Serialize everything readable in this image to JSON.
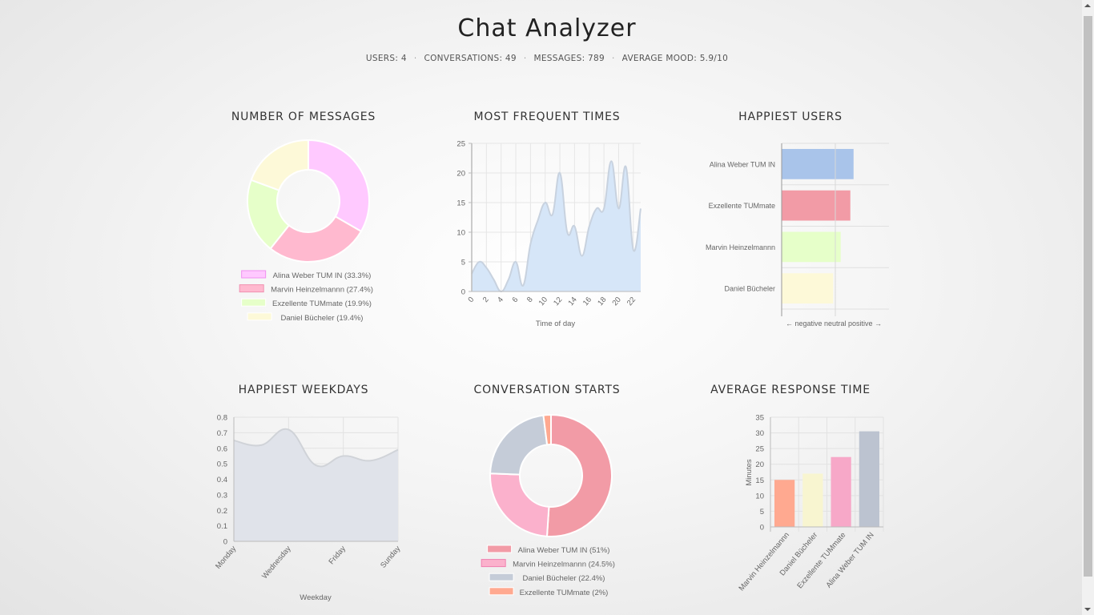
{
  "header": {
    "title": "Chat Analyzer",
    "stats": [
      "USERS: 4",
      "CONVERSATIONS: 49",
      "MESSAGES: 789",
      "AVERAGE MOOD: 5.9/10"
    ],
    "separator": "·"
  },
  "panels": {
    "messages_title": "NUMBER OF MESSAGES",
    "times_title": "MOST FREQUENT TIMES",
    "happiest_users_title": "HAPPIEST USERS",
    "weekdays_title": "HAPPIEST WEEKDAYS",
    "starts_title": "CONVERSATION STARTS",
    "response_title": "AVERAGE RESPONSE TIME"
  },
  "chart_data": [
    {
      "id": "messages",
      "type": "pie",
      "donut": true,
      "title": "NUMBER OF MESSAGES",
      "labels": [
        "Alina Weber TUM IN",
        "Marvin Heinzelmannn",
        "Exzellente TUMmate",
        "Daniel Bücheler"
      ],
      "values": [
        33.3,
        27.4,
        19.9,
        19.4
      ],
      "legend_labels": [
        "Alina Weber TUM IN (33.3%)",
        "Marvin Heinzelmannn (27.4%)",
        "Exzellente TUMmate (19.9%)",
        "Daniel Bücheler (19.4%)"
      ],
      "colors": [
        "#ffc9ff",
        "#ffb9cf",
        "#e6ffc9",
        "#fdf9d8"
      ],
      "borders": [
        "#f090f0",
        "#f090b0",
        "#ffffff",
        "#ffffff"
      ],
      "legend_position": "bottom"
    },
    {
      "id": "times",
      "type": "area",
      "title": "MOST FREQUENT TIMES",
      "xlabel": "Time of day",
      "ylabel": "",
      "x": [
        0,
        1,
        2,
        3,
        4,
        5,
        6,
        7,
        8,
        9,
        10,
        11,
        12,
        13,
        14,
        15,
        16,
        17,
        18,
        19,
        20,
        21,
        22,
        23
      ],
      "values": [
        3,
        5,
        4,
        2,
        0,
        2,
        5,
        1,
        8,
        12,
        15,
        13,
        20,
        10,
        11,
        6,
        11,
        14,
        14,
        22,
        14,
        21,
        7,
        14
      ],
      "xticks": [
        "0",
        "2",
        "4",
        "6",
        "8",
        "10",
        "12",
        "14",
        "16",
        "18",
        "20",
        "22"
      ],
      "yticks": [
        "0",
        "5",
        "10",
        "15",
        "20",
        "25"
      ],
      "ylim": [
        0,
        25
      ],
      "grid": true,
      "color": "#d6e6f8"
    },
    {
      "id": "happiest_users",
      "type": "bar",
      "orientation": "horizontal",
      "title": "HAPPIEST USERS",
      "categories": [
        "Alina Weber TUM IN",
        "Exzellente TUMmate",
        "Marvin Heinzelmannn",
        "Daniel Bücheler"
      ],
      "values": [
        0.67,
        0.64,
        0.55,
        0.48
      ],
      "xlim": [
        0,
        1
      ],
      "x_axis_caption": "← negative   neutral   positive →",
      "colors": [
        "#a9c4ea",
        "#f29ba6",
        "#e6ffc9",
        "#fdf9d8"
      ],
      "grid": true
    },
    {
      "id": "weekdays",
      "type": "area",
      "title": "HAPPIEST WEEKDAYS",
      "xlabel": "Weekday",
      "categories": [
        "Monday",
        "Tuesday",
        "Wednesday",
        "Thursday",
        "Friday",
        "Saturday",
        "Sunday"
      ],
      "values": [
        0.65,
        0.62,
        0.72,
        0.49,
        0.55,
        0.52,
        0.59
      ],
      "xticks": [
        "Monday",
        "Wednesday",
        "Friday",
        "Sunday"
      ],
      "yticks": [
        "0",
        "0.1",
        "0.2",
        "0.3",
        "0.4",
        "0.5",
        "0.6",
        "0.7",
        "0.8"
      ],
      "ylim": [
        0,
        0.8
      ],
      "grid": true,
      "color": "#e0e3ea"
    },
    {
      "id": "starts",
      "type": "pie",
      "donut": true,
      "title": "CONVERSATION STARTS",
      "labels": [
        "Alina Weber TUM IN",
        "Marvin Heinzelmannn",
        "Daniel Bücheler",
        "Exzellente TUMmate"
      ],
      "values": [
        51,
        24.5,
        22.4,
        2
      ],
      "legend_labels": [
        "Alina Weber TUM IN (51%)",
        "Marvin Heinzelmannn (24.5%)",
        "Daniel Bücheler (22.4%)",
        "Exzellente TUMmate (2%)"
      ],
      "colors": [
        "#f29ba6",
        "#fbb1cc",
        "#c5ccd8",
        "#ffa990"
      ],
      "borders": [
        "#ffffff",
        "#f080b0",
        "#ffffff",
        "#ffffff"
      ],
      "legend_position": "bottom"
    },
    {
      "id": "response",
      "type": "bar",
      "orientation": "vertical",
      "title": "AVERAGE RESPONSE TIME",
      "ylabel": "Minutes",
      "categories": [
        "Marvin Heinzelmannn",
        "Daniel Bücheler",
        "Exzellente TUMmate",
        "Alina Weber TUM IN"
      ],
      "values": [
        15,
        17,
        22.3,
        30.5
      ],
      "yticks": [
        "0",
        "5",
        "10",
        "15",
        "20",
        "25",
        "30",
        "35"
      ],
      "ylim": [
        0,
        35
      ],
      "colors": [
        "#ffa990",
        "#f8f5d0",
        "#f7a8c8",
        "#bcc3d0"
      ],
      "grid": true
    }
  ]
}
